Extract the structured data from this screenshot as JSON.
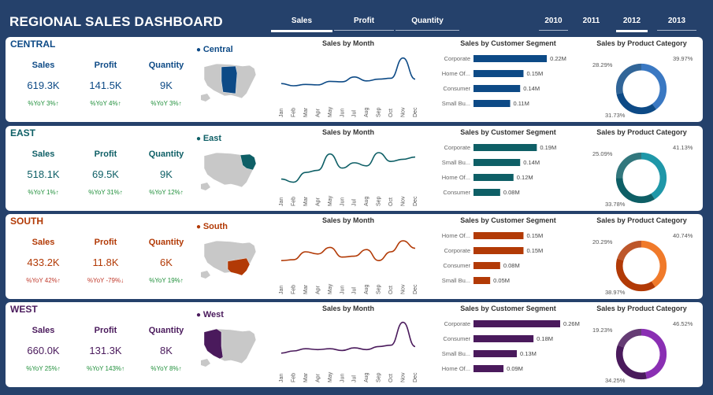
{
  "dashboard_title": "REGIONAL SALES DASHBOARD",
  "metric_tabs": [
    {
      "label": "Sales",
      "selected": true
    },
    {
      "label": "Profit",
      "selected": false
    },
    {
      "label": "Quantity",
      "selected": false
    }
  ],
  "year_tabs": [
    {
      "label": "2010",
      "selected": false
    },
    {
      "label": "2011",
      "selected": false
    },
    {
      "label": "2012",
      "selected": true
    },
    {
      "label": "2013",
      "selected": false
    }
  ],
  "months": [
    "Jan",
    "Feb",
    "Mar",
    "Apr",
    "May",
    "Jun",
    "Jul",
    "Aug",
    "Sep",
    "Oct",
    "Nov",
    "Dec"
  ],
  "line_chart_title": "Sales by Month",
  "segment_chart_title": "Sales by Customer Segment",
  "category_chart_title": "Sales by Product Category",
  "kpi_labels": {
    "sales": "Sales",
    "profit": "Profit",
    "quantity": "Quantity"
  },
  "regions": [
    {
      "name": "CENTRAL",
      "map_label": "Central",
      "color": "#0d4a86",
      "color_light": "#3a78c2",
      "sales": "619.3K",
      "profit": "141.5K",
      "quantity": "9K",
      "sales_yoy": "%YoY 3%↑",
      "profit_yoy": "%YoY 4%↑",
      "quantity_yoy": "%YoY 3%↑",
      "yoy_colors": [
        "green",
        "green",
        "green"
      ],
      "monthly_sales": [
        30,
        25,
        28,
        27,
        35,
        34,
        45,
        36,
        40,
        42,
        88,
        40
      ],
      "segments": [
        {
          "label": "Corporate",
          "value": 0.22,
          "value_label": "0.22M"
        },
        {
          "label": "Home Of...",
          "value": 0.15,
          "value_label": "0.15M"
        },
        {
          "label": "Consumer",
          "value": 0.14,
          "value_label": "0.14M"
        },
        {
          "label": "Small Bu...",
          "value": 0.11,
          "value_label": "0.11M"
        }
      ],
      "categories": [
        {
          "label": "39.97%",
          "value": 39.97
        },
        {
          "label": "31.73%",
          "value": 31.73
        },
        {
          "label": "28.29%",
          "value": 28.29
        }
      ]
    },
    {
      "name": "EAST",
      "map_label": "East",
      "color": "#0e5f66",
      "color_light": "#1f97a8",
      "sales": "518.1K",
      "profit": "69.5K",
      "quantity": "9K",
      "sales_yoy": "%YoY 1%↑",
      "profit_yoy": "%YoY 31%↑",
      "quantity_yoy": "%YoY 12%↑",
      "yoy_colors": [
        "green",
        "green",
        "green"
      ],
      "monthly_sales": [
        15,
        8,
        30,
        35,
        72,
        40,
        52,
        45,
        75,
        55,
        60,
        65
      ],
      "segments": [
        {
          "label": "Corporate",
          "value": 0.19,
          "value_label": "0.19M"
        },
        {
          "label": "Small Bu...",
          "value": 0.14,
          "value_label": "0.14M"
        },
        {
          "label": "Home Of...",
          "value": 0.12,
          "value_label": "0.12M"
        },
        {
          "label": "Consumer",
          "value": 0.08,
          "value_label": "0.08M"
        }
      ],
      "categories": [
        {
          "label": "41.13%",
          "value": 41.13
        },
        {
          "label": "33.78%",
          "value": 33.78
        },
        {
          "label": "25.09%",
          "value": 25.09
        }
      ]
    },
    {
      "name": "SOUTH",
      "map_label": "South",
      "color": "#b23a06",
      "color_light": "#f07a2a",
      "sales": "433.2K",
      "profit": "11.8K",
      "quantity": "6K",
      "sales_yoy": "%YoY 42%↑",
      "profit_yoy": "%YoY -79%↓",
      "quantity_yoy": "%YoY 19%↑",
      "yoy_colors": [
        "red",
        "red",
        "green"
      ],
      "monthly_sales": [
        30,
        32,
        50,
        45,
        60,
        38,
        40,
        55,
        30,
        50,
        75,
        58
      ],
      "segments": [
        {
          "label": "Home Of...",
          "value": 0.15,
          "value_label": "0.15M"
        },
        {
          "label": "Corporate",
          "value": 0.15,
          "value_label": "0.15M"
        },
        {
          "label": "Consumer",
          "value": 0.08,
          "value_label": "0.08M"
        },
        {
          "label": "Small Bu...",
          "value": 0.05,
          "value_label": "0.05M"
        }
      ],
      "categories": [
        {
          "label": "40.74%",
          "value": 40.74
        },
        {
          "label": "38.97%",
          "value": 38.97
        },
        {
          "label": "20.29%",
          "value": 20.29
        }
      ]
    },
    {
      "name": "WEST",
      "map_label": "West",
      "color": "#4a1a5c",
      "color_light": "#8a2fb3",
      "sales": "660.0K",
      "profit": "131.3K",
      "quantity": "8K",
      "sales_yoy": "%YoY 25%↑",
      "profit_yoy": "%YoY 143%↑",
      "quantity_yoy": "%YoY 8%↑",
      "yoy_colors": [
        "green",
        "green",
        "green"
      ],
      "monthly_sales": [
        20,
        25,
        30,
        28,
        30,
        26,
        32,
        28,
        35,
        38,
        90,
        35
      ],
      "segments": [
        {
          "label": "Corporate",
          "value": 0.26,
          "value_label": "0.26M"
        },
        {
          "label": "Consumer",
          "value": 0.18,
          "value_label": "0.18M"
        },
        {
          "label": "Small Bu...",
          "value": 0.13,
          "value_label": "0.13M"
        },
        {
          "label": "Home Of...",
          "value": 0.09,
          "value_label": "0.09M"
        }
      ],
      "categories": [
        {
          "label": "46.52%",
          "value": 46.52
        },
        {
          "label": "34.25%",
          "value": 34.25
        },
        {
          "label": "19.23%",
          "value": 19.23
        }
      ]
    }
  ]
}
